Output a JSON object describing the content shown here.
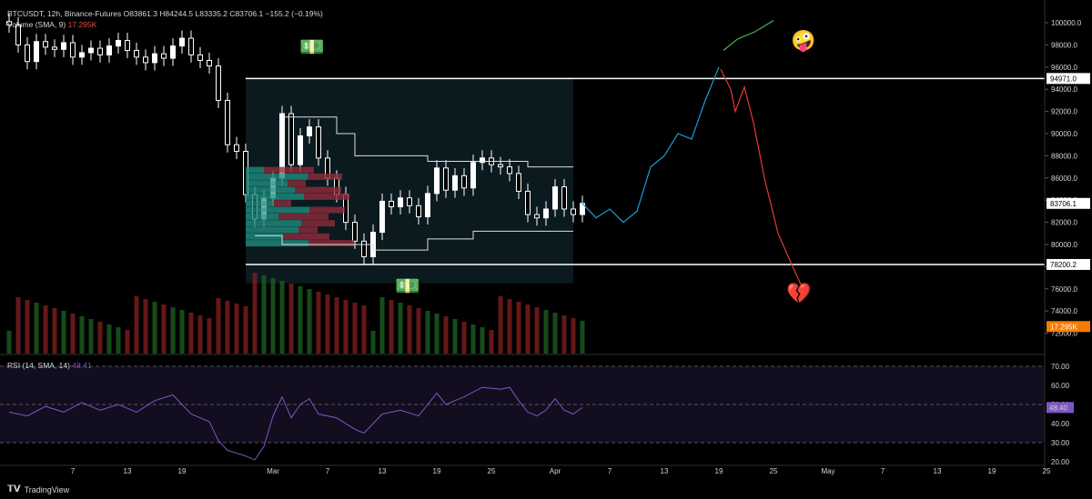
{
  "header": {
    "symbol_line": "BTCUSDT, 12h, Binance-Futures",
    "ohlc": "O83861.3 H84244.5 L83335.2 C83706.1 −155.2 (−0.19%)",
    "volume_label": "Volume (SMA, 9)",
    "volume_value": "17.295K",
    "rsi_label": "RSI (14, SMA, 14)",
    "rsi_value": "48.41"
  },
  "footer": {
    "brand": "TradingView"
  },
  "emojis": {
    "money_top": "💵",
    "money_bottom": "💵",
    "crazy_face": "🤪",
    "broken_heart": "💔"
  },
  "colors": {
    "up": "#ffffff",
    "down": "#ffffff",
    "vol_up": "#1b5e20",
    "vol_down": "#7f1d1d",
    "rsi": "#7e57c2",
    "forecast_blue": "#1e9bd7",
    "forecast_green": "#4caf50",
    "forecast_red": "#e53935",
    "box": "#0d1f24",
    "vp_up": "#1e8c7e",
    "vp_down": "#8e2a3a",
    "price_tag": "#f57c00"
  },
  "chart_data": {
    "type": "candlestick",
    "timeframe": "12h",
    "y_axis": {
      "ylim": [
        70000,
        101000
      ],
      "ticks": [
        72000,
        74000,
        76000,
        78000,
        80000,
        82000,
        84000,
        86000,
        88000,
        90000,
        92000,
        94000,
        96000,
        98000,
        100000
      ]
    },
    "x_axis_labels": [
      "7",
      "13",
      "19",
      "Mar",
      "7",
      "13",
      "19",
      "25",
      "Apr",
      "7",
      "13",
      "19",
      "25",
      "May",
      "7",
      "13",
      "19",
      "25"
    ],
    "x_label_days": [
      7,
      13,
      19,
      29,
      35,
      41,
      47,
      53,
      60,
      66,
      72,
      78,
      84,
      90,
      96,
      102,
      108,
      114
    ],
    "price_tags": [
      {
        "label": "94971.0",
        "value": 94971
      },
      {
        "label": "83706.1",
        "value": 83706
      },
      {
        "label": "78200.2",
        "value": 78200
      },
      {
        "label": "17.295K",
        "value": 72600,
        "highlight": true
      }
    ],
    "levels": [
      94971,
      78200
    ],
    "close_series": [
      {
        "day": 0,
        "close": 99800
      },
      {
        "day": 1,
        "close": 98000
      },
      {
        "day": 2,
        "close": 96500
      },
      {
        "day": 3,
        "close": 98300
      },
      {
        "day": 4,
        "close": 97800
      },
      {
        "day": 5,
        "close": 97600
      },
      {
        "day": 6,
        "close": 98200
      },
      {
        "day": 7,
        "close": 96900
      },
      {
        "day": 8,
        "close": 97300
      },
      {
        "day": 9,
        "close": 97700
      },
      {
        "day": 10,
        "close": 97100
      },
      {
        "day": 11,
        "close": 97900
      },
      {
        "day": 12,
        "close": 98400
      },
      {
        "day": 13,
        "close": 97500
      },
      {
        "day": 14,
        "close": 96900
      },
      {
        "day": 15,
        "close": 96400
      },
      {
        "day": 16,
        "close": 97200
      },
      {
        "day": 17,
        "close": 96800
      },
      {
        "day": 18,
        "close": 97900
      },
      {
        "day": 19,
        "close": 98600
      },
      {
        "day": 20,
        "close": 97100
      },
      {
        "day": 21,
        "close": 96600
      },
      {
        "day": 22,
        "close": 96100
      },
      {
        "day": 23,
        "close": 93000
      },
      {
        "day": 24,
        "close": 89000
      },
      {
        "day": 25,
        "close": 88400
      },
      {
        "day": 26,
        "close": 84500
      },
      {
        "day": 27,
        "close": 82300
      },
      {
        "day": 28,
        "close": 84200
      },
      {
        "day": 29,
        "close": 86000
      },
      {
        "day": 30,
        "close": 91800
      },
      {
        "day": 31,
        "close": 87200
      },
      {
        "day": 32,
        "close": 89800
      },
      {
        "day": 33,
        "close": 90600
      },
      {
        "day": 34,
        "close": 87800
      },
      {
        "day": 35,
        "close": 86000
      },
      {
        "day": 36,
        "close": 84500
      },
      {
        "day": 37,
        "close": 82000
      },
      {
        "day": 38,
        "close": 80300
      },
      {
        "day": 39,
        "close": 78900
      },
      {
        "day": 40,
        "close": 81100
      },
      {
        "day": 41,
        "close": 83900
      },
      {
        "day": 42,
        "close": 83400
      },
      {
        "day": 43,
        "close": 84200
      },
      {
        "day": 44,
        "close": 83500
      },
      {
        "day": 45,
        "close": 82500
      },
      {
        "day": 46,
        "close": 84600
      },
      {
        "day": 47,
        "close": 86900
      },
      {
        "day": 48,
        "close": 84900
      },
      {
        "day": 49,
        "close": 86200
      },
      {
        "day": 50,
        "close": 85100
      },
      {
        "day": 51,
        "close": 87400
      },
      {
        "day": 52,
        "close": 87800
      },
      {
        "day": 53,
        "close": 87200
      },
      {
        "day": 54,
        "close": 87000
      },
      {
        "day": 55,
        "close": 86400
      },
      {
        "day": 56,
        "close": 84800
      },
      {
        "day": 57,
        "close": 82700
      },
      {
        "day": 58,
        "close": 82400
      },
      {
        "day": 59,
        "close": 83200
      },
      {
        "day": 60,
        "close": 85200
      },
      {
        "day": 61,
        "close": 83200
      },
      {
        "day": 62,
        "close": 82700
      },
      {
        "day": 63,
        "close": 83706
      }
    ],
    "rsi": {
      "ylim": [
        20,
        72
      ],
      "ticks": [
        20,
        30,
        40,
        50,
        60,
        70
      ],
      "levels": [
        30,
        50,
        70
      ],
      "series": [
        {
          "day": 0,
          "v": 46
        },
        {
          "day": 2,
          "v": 44
        },
        {
          "day": 4,
          "v": 49
        },
        {
          "day": 6,
          "v": 46
        },
        {
          "day": 8,
          "v": 51
        },
        {
          "day": 10,
          "v": 47
        },
        {
          "day": 12,
          "v": 50
        },
        {
          "day": 14,
          "v": 46
        },
        {
          "day": 16,
          "v": 52
        },
        {
          "day": 18,
          "v": 55
        },
        {
          "day": 20,
          "v": 45
        },
        {
          "day": 22,
          "v": 41
        },
        {
          "day": 23,
          "v": 31
        },
        {
          "day": 24,
          "v": 26
        },
        {
          "day": 26,
          "v": 23
        },
        {
          "day": 27,
          "v": 21
        },
        {
          "day": 28,
          "v": 28
        },
        {
          "day": 29,
          "v": 44
        },
        {
          "day": 30,
          "v": 54
        },
        {
          "day": 31,
          "v": 43
        },
        {
          "day": 32,
          "v": 50
        },
        {
          "day": 33,
          "v": 53
        },
        {
          "day": 34,
          "v": 45
        },
        {
          "day": 36,
          "v": 43
        },
        {
          "day": 38,
          "v": 37
        },
        {
          "day": 39,
          "v": 35
        },
        {
          "day": 41,
          "v": 45
        },
        {
          "day": 43,
          "v": 47
        },
        {
          "day": 45,
          "v": 44
        },
        {
          "day": 47,
          "v": 56
        },
        {
          "day": 48,
          "v": 50
        },
        {
          "day": 50,
          "v": 54
        },
        {
          "day": 52,
          "v": 59
        },
        {
          "day": 54,
          "v": 58
        },
        {
          "day": 55,
          "v": 59
        },
        {
          "day": 56,
          "v": 52
        },
        {
          "day": 57,
          "v": 46
        },
        {
          "day": 58,
          "v": 44
        },
        {
          "day": 59,
          "v": 47
        },
        {
          "day": 60,
          "v": 53
        },
        {
          "day": 61,
          "v": 47
        },
        {
          "day": 62,
          "v": 45
        },
        {
          "day": 63,
          "v": 48.4
        }
      ]
    },
    "forecast": {
      "blue": [
        {
          "day": 63,
          "v": 83706
        },
        {
          "day": 64.5,
          "v": 82400
        },
        {
          "day": 66,
          "v": 83200
        },
        {
          "day": 67.5,
          "v": 82000
        },
        {
          "day": 69,
          "v": 83000
        },
        {
          "day": 70.5,
          "v": 87000
        },
        {
          "day": 72,
          "v": 88000
        },
        {
          "day": 73.5,
          "v": 90000
        },
        {
          "day": 75,
          "v": 89500
        },
        {
          "day": 76.5,
          "v": 93000
        },
        {
          "day": 78,
          "v": 96000
        }
      ],
      "green": [
        {
          "day": 78.5,
          "v": 97500
        },
        {
          "day": 80,
          "v": 98500
        },
        {
          "day": 82,
          "v": 99200
        },
        {
          "day": 84,
          "v": 100200
        }
      ],
      "red": [
        {
          "day": 78.2,
          "v": 95800
        },
        {
          "day": 79.3,
          "v": 94000
        },
        {
          "day": 79.8,
          "v": 92000
        },
        {
          "day": 80.8,
          "v": 94200
        },
        {
          "day": 81.8,
          "v": 91000
        },
        {
          "day": 83,
          "v": 86000
        },
        {
          "day": 84.5,
          "v": 81000
        },
        {
          "day": 86,
          "v": 78200
        },
        {
          "day": 87.5,
          "v": 75500
        }
      ]
    },
    "annotations": [
      {
        "emoji": "money_top",
        "day": 33,
        "v": 97800
      },
      {
        "emoji": "money_bottom",
        "day": 43.5,
        "v": 76200
      },
      {
        "emoji": "crazy_face",
        "day": 87,
        "v": 98400
      },
      {
        "emoji": "broken_heart",
        "day": 86.5,
        "v": 75600
      }
    ]
  }
}
